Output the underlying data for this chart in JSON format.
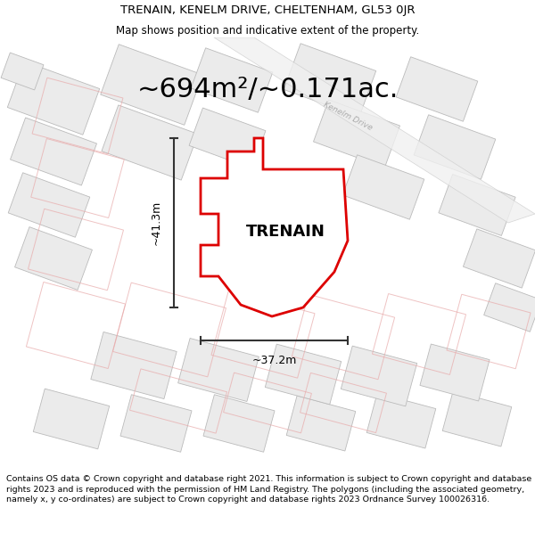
{
  "title": "TRENAIN, KENELM DRIVE, CHELTENHAM, GL53 0JR",
  "subtitle": "Map shows position and indicative extent of the property.",
  "area_text": "~694m²/~0.171ac.",
  "property_label": "TRENAIN",
  "dim_vertical": "~41.3m",
  "dim_horizontal": "~37.2m",
  "footer": "Contains OS data © Crown copyright and database right 2021. This information is subject to Crown copyright and database rights 2023 and is reproduced with the permission of HM Land Registry. The polygons (including the associated geometry, namely x, y co-ordinates) are subject to Crown copyright and database rights 2023 Ordnance Survey 100026316.",
  "bg_color": "#ffffff",
  "map_bg": "#f7f7f7",
  "property_fill": "#ffffff",
  "property_edge": "#dd0000",
  "building_fill": "#ebebeb",
  "building_edge_gray": "#bbbbbb",
  "building_edge_pink": "#e8aaaa",
  "road_label_color": "#aaaaaa",
  "dim_line_color": "#333333",
  "title_fontsize": 9.5,
  "subtitle_fontsize": 8.5,
  "area_fontsize": 22,
  "label_fontsize": 13,
  "footer_fontsize": 6.8
}
